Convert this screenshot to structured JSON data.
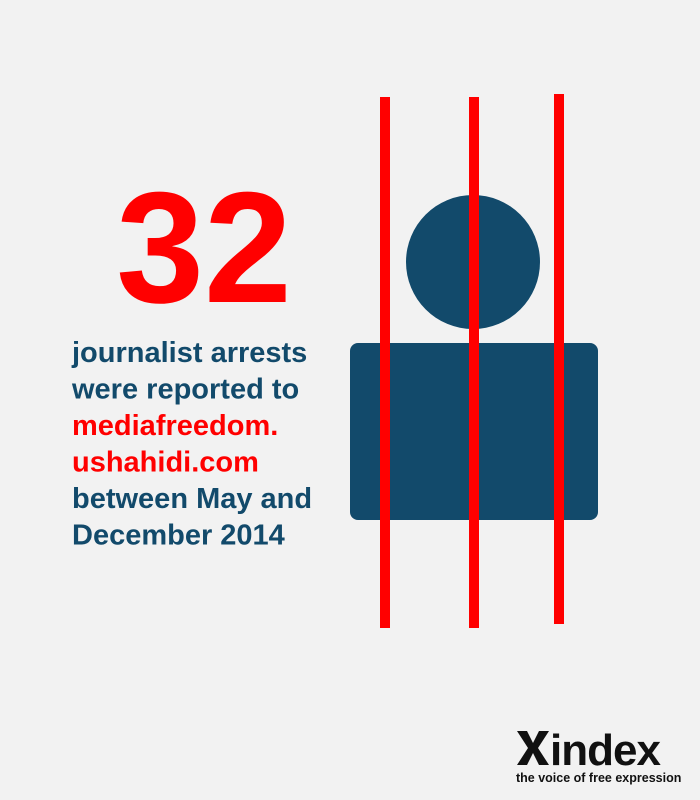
{
  "headline": {
    "number": "32"
  },
  "statement": {
    "lines": [
      {
        "text": "journalist arrests",
        "highlight": false
      },
      {
        "text": "were reported to",
        "highlight": false
      },
      {
        "text": "mediafreedom.",
        "highlight": true
      },
      {
        "text": "ushahidi.com",
        "highlight": true
      },
      {
        "text": "between May and",
        "highlight": false
      },
      {
        "text": "December 2014",
        "highlight": false
      }
    ]
  },
  "logo": {
    "name": "index",
    "tagline": "the voice of free expression"
  }
}
